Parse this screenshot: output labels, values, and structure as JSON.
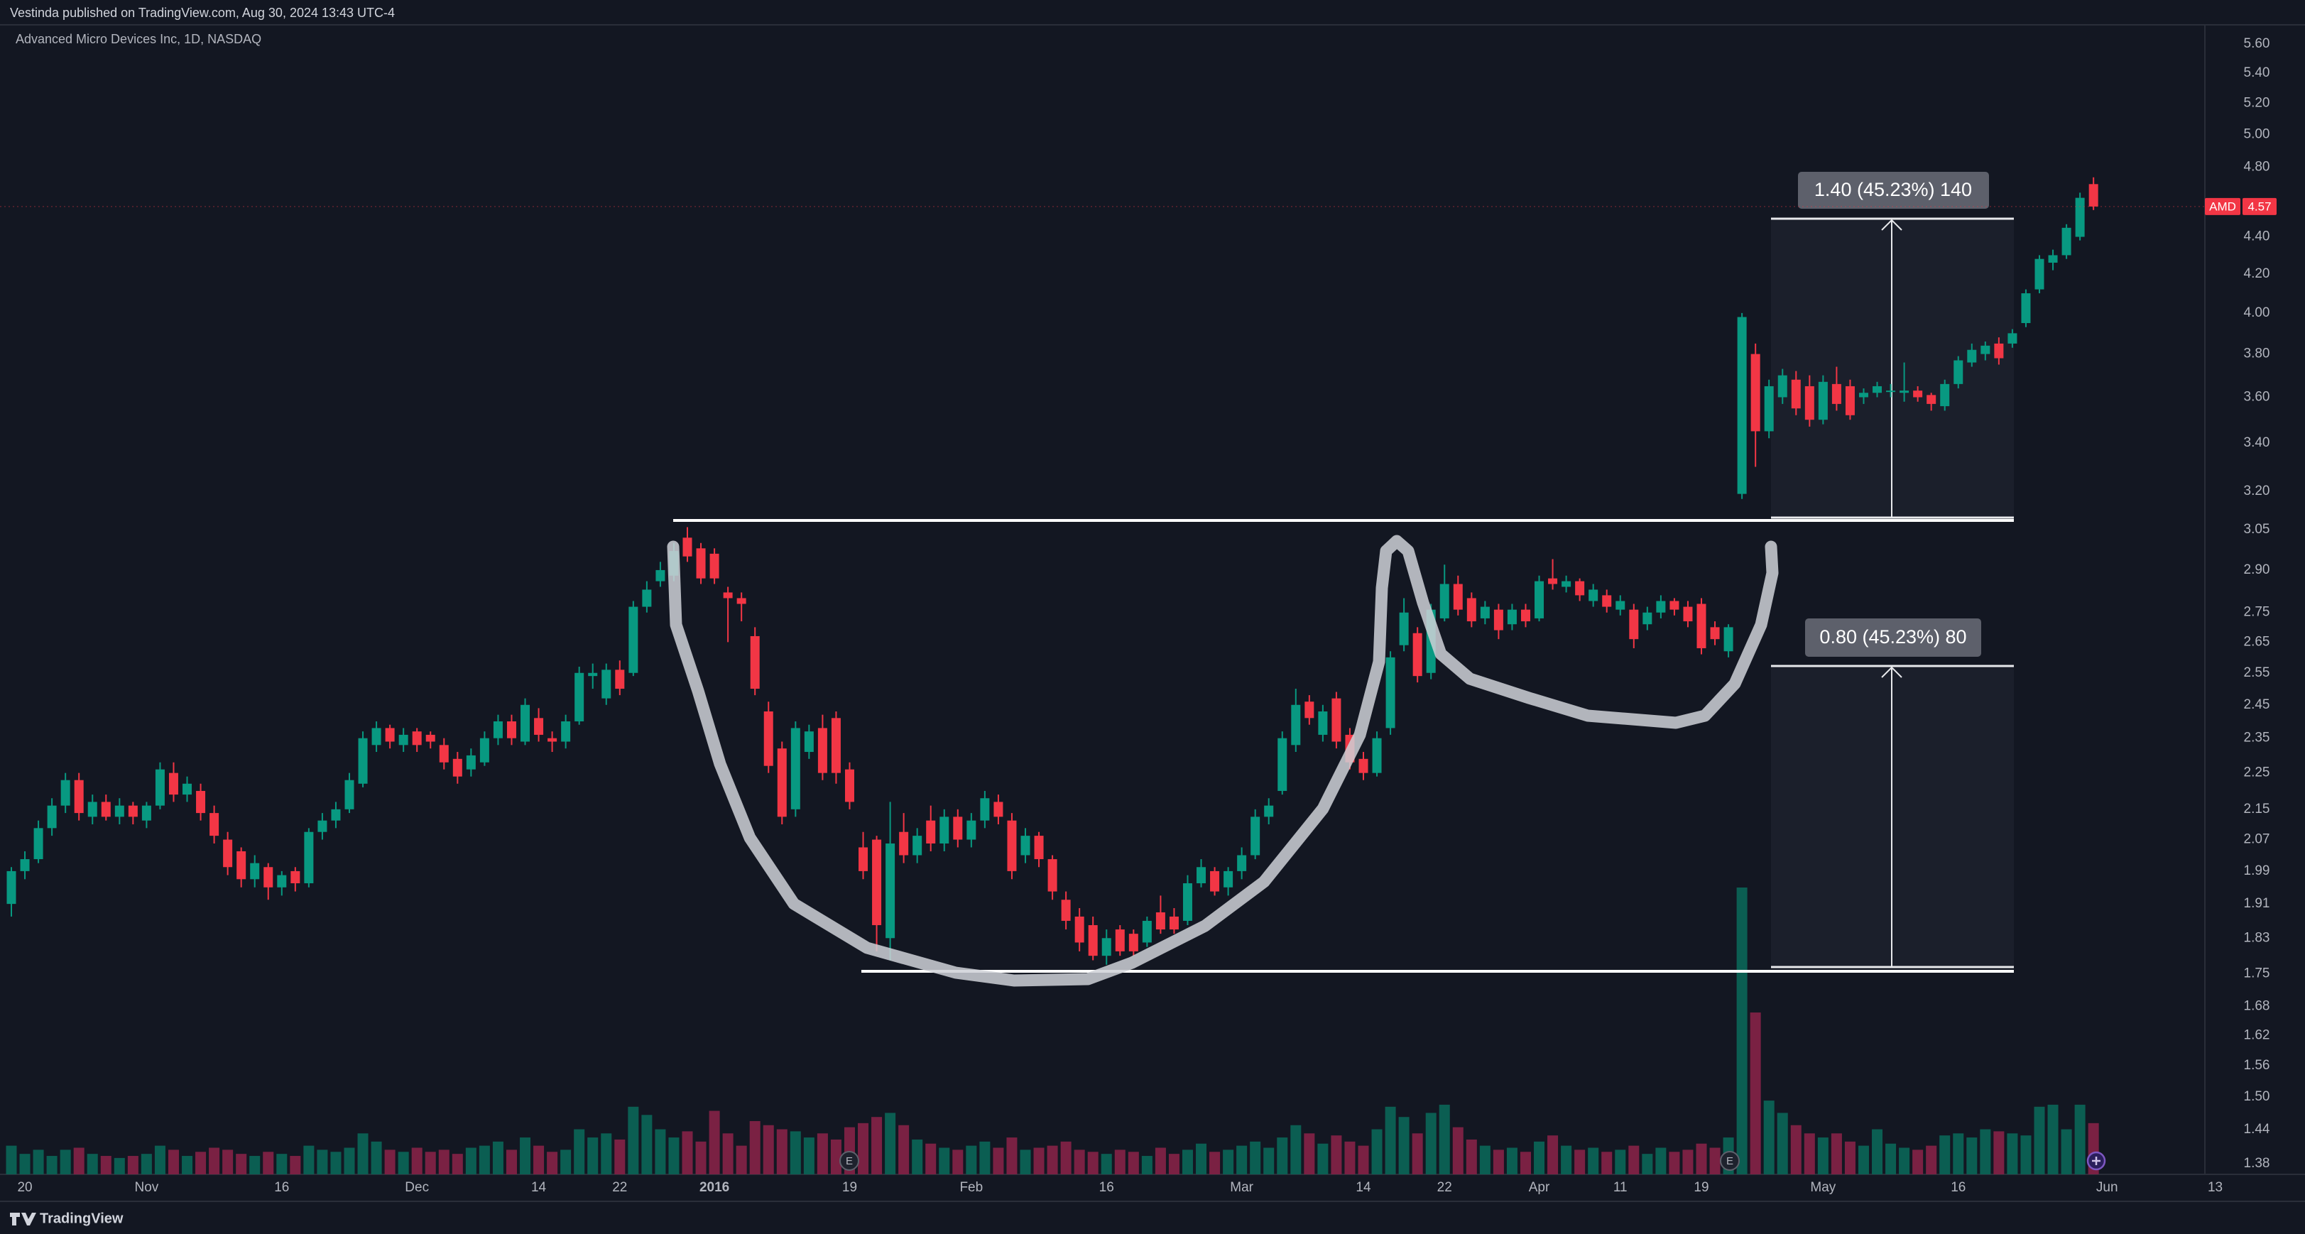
{
  "header": {
    "text": "Vestinda published on TradingView.com, Aug 30, 2024 13:43 UTC-4"
  },
  "footer": {
    "logo": "TradingView"
  },
  "chart_data": {
    "type": "candlestick",
    "title": "Advanced Micro Devices Inc, 1D, NASDAQ",
    "symbol": "AMD",
    "categories": [
      null,
      "20",
      null,
      null,
      null,
      null,
      null,
      null,
      null,
      null,
      "Nov",
      null,
      null,
      null,
      null,
      null,
      null,
      null,
      null,
      null,
      "16",
      null,
      null,
      null,
      null,
      null,
      null,
      null,
      null,
      null,
      "Dec",
      null,
      null,
      null,
      null,
      null,
      null,
      null,
      null,
      "14",
      null,
      null,
      null,
      null,
      null,
      "22",
      null,
      null,
      null,
      null,
      null,
      null,
      "2016",
      null,
      null,
      null,
      null,
      null,
      null,
      null,
      null,
      null,
      "19",
      null,
      null,
      null,
      null,
      null,
      null,
      null,
      null,
      "Feb",
      null,
      null,
      null,
      null,
      null,
      null,
      null,
      null,
      null,
      "16",
      null,
      null,
      null,
      null,
      null,
      null,
      null,
      null,
      null,
      "Mar",
      null,
      null,
      null,
      null,
      null,
      null,
      null,
      null,
      "14",
      null,
      null,
      null,
      null,
      null,
      "22",
      null,
      null,
      null,
      null,
      null,
      null,
      "Apr",
      null,
      null,
      null,
      null,
      null,
      "11",
      null,
      null,
      null,
      null,
      null,
      "19",
      null,
      null,
      null,
      null,
      null,
      null,
      null,
      null,
      "May",
      null,
      null,
      null,
      null,
      null,
      null,
      null,
      null,
      null,
      "16",
      null,
      null,
      null,
      null,
      null,
      null,
      null,
      null,
      null,
      null,
      "Jun",
      null,
      null,
      null,
      null,
      null,
      null,
      null,
      "13"
    ],
    "ohlc": [
      [
        1.91,
        2.0,
        1.88,
        1.99
      ],
      [
        1.99,
        2.04,
        1.97,
        2.02
      ],
      [
        2.02,
        2.12,
        2.01,
        2.1
      ],
      [
        2.1,
        2.18,
        2.08,
        2.16
      ],
      [
        2.16,
        2.25,
        2.14,
        2.23
      ],
      [
        2.23,
        2.25,
        2.12,
        2.14
      ],
      [
        2.13,
        2.19,
        2.11,
        2.17
      ],
      [
        2.17,
        2.19,
        2.12,
        2.13
      ],
      [
        2.13,
        2.18,
        2.11,
        2.16
      ],
      [
        2.16,
        2.17,
        2.11,
        2.13
      ],
      [
        2.12,
        2.17,
        2.1,
        2.16
      ],
      [
        2.16,
        2.28,
        2.15,
        2.26
      ],
      [
        2.25,
        2.28,
        2.17,
        2.19
      ],
      [
        2.19,
        2.24,
        2.17,
        2.22
      ],
      [
        2.2,
        2.22,
        2.12,
        2.14
      ],
      [
        2.14,
        2.16,
        2.06,
        2.08
      ],
      [
        2.07,
        2.09,
        1.98,
        2.0
      ],
      [
        2.04,
        2.05,
        1.95,
        1.97
      ],
      [
        1.97,
        2.03,
        1.95,
        2.01
      ],
      [
        2.0,
        2.01,
        1.92,
        1.95
      ],
      [
        1.95,
        1.99,
        1.93,
        1.98
      ],
      [
        1.99,
        2.0,
        1.94,
        1.96
      ],
      [
        1.96,
        2.1,
        1.95,
        2.09
      ],
      [
        2.09,
        2.14,
        2.07,
        2.12
      ],
      [
        2.12,
        2.17,
        2.1,
        2.15
      ],
      [
        2.15,
        2.25,
        2.14,
        2.23
      ],
      [
        2.22,
        2.37,
        2.21,
        2.35
      ],
      [
        2.33,
        2.4,
        2.31,
        2.38
      ],
      [
        2.38,
        2.39,
        2.32,
        2.34
      ],
      [
        2.33,
        2.38,
        2.31,
        2.36
      ],
      [
        2.37,
        2.38,
        2.31,
        2.33
      ],
      [
        2.36,
        2.37,
        2.32,
        2.34
      ],
      [
        2.33,
        2.35,
        2.26,
        2.28
      ],
      [
        2.29,
        2.31,
        2.22,
        2.24
      ],
      [
        2.26,
        2.32,
        2.24,
        2.3
      ],
      [
        2.28,
        2.37,
        2.27,
        2.35
      ],
      [
        2.35,
        2.42,
        2.33,
        2.4
      ],
      [
        2.4,
        2.42,
        2.33,
        2.35
      ],
      [
        2.34,
        2.47,
        2.33,
        2.45
      ],
      [
        2.41,
        2.44,
        2.34,
        2.36
      ],
      [
        2.35,
        2.37,
        2.31,
        2.34
      ],
      [
        2.34,
        2.42,
        2.32,
        2.4
      ],
      [
        2.4,
        2.57,
        2.39,
        2.55
      ],
      [
        2.54,
        2.58,
        2.5,
        2.55
      ],
      [
        2.47,
        2.58,
        2.45,
        2.56
      ],
      [
        2.56,
        2.59,
        2.48,
        2.5
      ],
      [
        2.55,
        2.79,
        2.54,
        2.77
      ],
      [
        2.77,
        2.86,
        2.75,
        2.83
      ],
      [
        2.86,
        2.93,
        2.84,
        2.9
      ],
      [
        2.88,
        3.0,
        2.86,
        2.97
      ],
      [
        3.02,
        3.06,
        2.93,
        2.95
      ],
      [
        2.98,
        3.0,
        2.85,
        2.87
      ],
      [
        2.96,
        2.98,
        2.85,
        2.87
      ],
      [
        2.82,
        2.84,
        2.65,
        2.8
      ],
      [
        2.8,
        2.82,
        2.72,
        2.78
      ],
      [
        2.67,
        2.7,
        2.48,
        2.5
      ],
      [
        2.43,
        2.46,
        2.25,
        2.27
      ],
      [
        2.32,
        2.34,
        2.11,
        2.13
      ],
      [
        2.15,
        2.4,
        2.13,
        2.38
      ],
      [
        2.31,
        2.39,
        2.29,
        2.37
      ],
      [
        2.38,
        2.42,
        2.23,
        2.25
      ],
      [
        2.41,
        2.43,
        2.22,
        2.25
      ],
      [
        2.26,
        2.28,
        2.15,
        2.17
      ],
      [
        2.05,
        2.09,
        1.97,
        1.99
      ],
      [
        2.07,
        2.08,
        1.8,
        1.86
      ],
      [
        1.83,
        2.17,
        1.78,
        2.06
      ],
      [
        2.09,
        2.14,
        2.01,
        2.03
      ],
      [
        2.03,
        2.1,
        2.01,
        2.08
      ],
      [
        2.12,
        2.16,
        2.04,
        2.06
      ],
      [
        2.06,
        2.15,
        2.04,
        2.13
      ],
      [
        2.13,
        2.15,
        2.05,
        2.07
      ],
      [
        2.07,
        2.14,
        2.05,
        2.12
      ],
      [
        2.12,
        2.2,
        2.1,
        2.18
      ],
      [
        2.17,
        2.19,
        2.11,
        2.13
      ],
      [
        2.12,
        2.14,
        1.97,
        1.99
      ],
      [
        2.03,
        2.1,
        2.01,
        2.08
      ],
      [
        2.08,
        2.09,
        2.0,
        2.02
      ],
      [
        2.02,
        2.03,
        1.92,
        1.94
      ],
      [
        1.92,
        1.94,
        1.85,
        1.87
      ],
      [
        1.88,
        1.9,
        1.8,
        1.82
      ],
      [
        1.86,
        1.88,
        1.78,
        1.79
      ],
      [
        1.79,
        1.85,
        1.77,
        1.83
      ],
      [
        1.85,
        1.86,
        1.79,
        1.8
      ],
      [
        1.84,
        1.85,
        1.79,
        1.8
      ],
      [
        1.82,
        1.88,
        1.81,
        1.87
      ],
      [
        1.89,
        1.93,
        1.84,
        1.85
      ],
      [
        1.88,
        1.9,
        1.84,
        1.85
      ],
      [
        1.87,
        1.98,
        1.86,
        1.96
      ],
      [
        1.96,
        2.02,
        1.95,
        2.0
      ],
      [
        1.99,
        2.0,
        1.93,
        1.94
      ],
      [
        1.95,
        2.0,
        1.93,
        1.99
      ],
      [
        1.99,
        2.05,
        1.97,
        2.03
      ],
      [
        2.03,
        2.15,
        2.02,
        2.13
      ],
      [
        2.13,
        2.18,
        2.11,
        2.16
      ],
      [
        2.2,
        2.37,
        2.19,
        2.35
      ],
      [
        2.33,
        2.5,
        2.31,
        2.45
      ],
      [
        2.46,
        2.48,
        2.39,
        2.41
      ],
      [
        2.36,
        2.45,
        2.34,
        2.43
      ],
      [
        2.47,
        2.49,
        2.32,
        2.34
      ],
      [
        2.36,
        2.38,
        2.26,
        2.28
      ],
      [
        2.29,
        2.31,
        2.23,
        2.25
      ],
      [
        2.25,
        2.37,
        2.24,
        2.35
      ],
      [
        2.38,
        2.62,
        2.36,
        2.6
      ],
      [
        2.64,
        2.8,
        2.62,
        2.75
      ],
      [
        2.68,
        2.7,
        2.52,
        2.54
      ],
      [
        2.55,
        2.78,
        2.53,
        2.76
      ],
      [
        2.73,
        2.92,
        2.72,
        2.85
      ],
      [
        2.85,
        2.88,
        2.74,
        2.76
      ],
      [
        2.8,
        2.82,
        2.7,
        2.72
      ],
      [
        2.73,
        2.79,
        2.71,
        2.77
      ],
      [
        2.76,
        2.78,
        2.66,
        2.69
      ],
      [
        2.71,
        2.78,
        2.69,
        2.76
      ],
      [
        2.76,
        2.78,
        2.7,
        2.72
      ],
      [
        2.73,
        2.88,
        2.72,
        2.86
      ],
      [
        2.87,
        2.94,
        2.83,
        2.85
      ],
      [
        2.84,
        2.88,
        2.82,
        2.86
      ],
      [
        2.86,
        2.87,
        2.79,
        2.81
      ],
      [
        2.79,
        2.85,
        2.77,
        2.83
      ],
      [
        2.81,
        2.83,
        2.75,
        2.77
      ],
      [
        2.76,
        2.81,
        2.74,
        2.79
      ],
      [
        2.76,
        2.78,
        2.63,
        2.66
      ],
      [
        2.71,
        2.77,
        2.69,
        2.75
      ],
      [
        2.75,
        2.81,
        2.73,
        2.79
      ],
      [
        2.79,
        2.8,
        2.74,
        2.76
      ],
      [
        2.77,
        2.79,
        2.7,
        2.72
      ],
      [
        2.78,
        2.8,
        2.61,
        2.63
      ],
      [
        2.7,
        2.72,
        2.64,
        2.66
      ],
      [
        2.62,
        2.71,
        2.6,
        2.7
      ],
      [
        3.19,
        4.0,
        3.17,
        3.98
      ],
      [
        3.8,
        3.85,
        3.3,
        3.45
      ],
      [
        3.45,
        3.68,
        3.42,
        3.65
      ],
      [
        3.6,
        3.73,
        3.57,
        3.7
      ],
      [
        3.68,
        3.72,
        3.52,
        3.55
      ],
      [
        3.65,
        3.7,
        3.47,
        3.5
      ],
      [
        3.5,
        3.7,
        3.48,
        3.67
      ],
      [
        3.66,
        3.74,
        3.54,
        3.57
      ],
      [
        3.65,
        3.68,
        3.5,
        3.52
      ],
      [
        3.6,
        3.64,
        3.57,
        3.62
      ],
      [
        3.62,
        3.67,
        3.6,
        3.65
      ],
      [
        3.63,
        3.66,
        3.6,
        3.63
      ],
      [
        3.62,
        3.76,
        3.58,
        3.63
      ],
      [
        3.63,
        3.65,
        3.58,
        3.6
      ],
      [
        3.61,
        3.62,
        3.54,
        3.57
      ],
      [
        3.56,
        3.68,
        3.54,
        3.66
      ],
      [
        3.66,
        3.79,
        3.64,
        3.77
      ],
      [
        3.76,
        3.85,
        3.74,
        3.82
      ],
      [
        3.8,
        3.86,
        3.77,
        3.84
      ],
      [
        3.85,
        3.88,
        3.75,
        3.78
      ],
      [
        3.85,
        3.92,
        3.83,
        3.9
      ],
      [
        3.95,
        4.12,
        3.93,
        4.1
      ],
      [
        4.12,
        4.3,
        4.1,
        4.28
      ],
      [
        4.26,
        4.33,
        4.22,
        4.3
      ],
      [
        4.3,
        4.47,
        4.28,
        4.45
      ],
      [
        4.4,
        4.65,
        4.38,
        4.62
      ],
      [
        4.7,
        4.74,
        4.55,
        4.57
      ],
      null,
      null,
      null,
      null,
      null,
      null,
      null,
      null,
      null
    ],
    "volume": [
      14,
      10,
      12,
      9,
      12,
      13,
      10,
      9,
      8,
      9,
      10,
      14,
      12,
      9,
      11,
      13,
      12,
      10,
      9,
      11,
      10,
      9,
      14,
      12,
      11,
      13,
      20,
      16,
      12,
      11,
      13,
      11,
      12,
      10,
      13,
      14,
      16,
      12,
      18,
      14,
      11,
      12,
      22,
      18,
      20,
      17,
      33,
      29,
      22,
      18,
      21,
      16,
      31,
      20,
      14,
      26,
      24,
      22,
      21,
      18,
      20,
      17,
      23,
      25,
      28,
      30,
      24,
      17,
      15,
      13,
      12,
      14,
      16,
      13,
      18,
      12,
      13,
      14,
      16,
      12,
      11,
      10,
      12,
      11,
      9,
      13,
      10,
      12,
      15,
      11,
      12,
      14,
      16,
      13,
      18,
      24,
      20,
      15,
      19,
      16,
      14,
      22,
      33,
      28,
      20,
      30,
      34,
      23,
      17,
      14,
      12,
      13,
      11,
      16,
      19,
      14,
      12,
      13,
      11,
      12,
      14,
      10,
      13,
      11,
      12,
      15,
      13,
      18,
      140,
      79,
      36,
      30,
      24,
      20,
      18,
      20,
      16,
      14,
      22,
      15,
      13,
      12,
      14,
      19,
      20,
      18,
      22,
      21,
      20,
      19,
      33,
      34,
      22,
      34,
      25,
      null,
      null,
      null,
      null,
      null,
      null,
      null,
      null,
      null
    ],
    "up_color": "#089981",
    "down_color": "#f23645",
    "volume_up_color": "#0b5e52",
    "volume_down_color": "#7a2143",
    "log_scale": true,
    "grid": false,
    "ylim": [
      1.363,
      5.731
    ],
    "yticks": [
      {
        "value": 5.6,
        "label": "5.60"
      },
      {
        "value": 5.4,
        "label": "5.40"
      },
      {
        "value": 5.2,
        "label": "5.20"
      },
      {
        "value": 5,
        "label": "5.00"
      },
      {
        "value": 4.8,
        "label": "4.80"
      },
      {
        "value": 4.4,
        "label": "4.40"
      },
      {
        "value": 4.2,
        "label": "4.20"
      },
      {
        "value": 4,
        "label": "4.00"
      },
      {
        "value": 3.8,
        "label": "3.80"
      },
      {
        "value": 3.6,
        "label": "3.60"
      },
      {
        "value": 3.4,
        "label": "3.40"
      },
      {
        "value": 3.2,
        "label": "3.20"
      },
      3.05,
      {
        "value": 2.9,
        "label": "2.90"
      },
      2.75,
      2.65,
      2.55,
      2.45,
      2.35,
      2.25,
      2.15,
      2.07,
      1.99,
      1.91,
      1.83,
      1.75,
      1.68,
      1.62,
      1.56,
      {
        "value": 1.5,
        "label": "1.50"
      },
      1.44,
      1.38
    ],
    "annotations": [
      "1.40 (45.23%) 140",
      "0.80 (45.23%) 80"
    ],
    "events": [
      "E",
      "E"
    ]
  }
}
